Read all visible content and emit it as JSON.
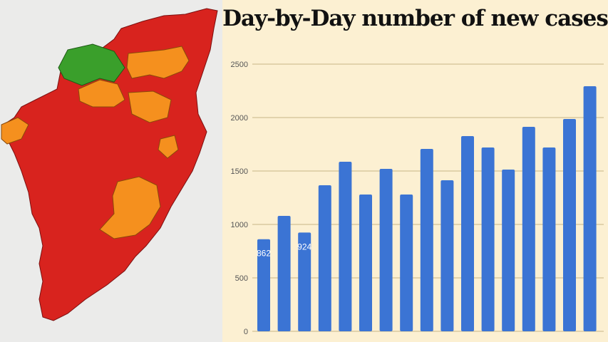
{
  "chart_data": {
    "type": "bar",
    "title": "Day-by-Day number of new cases",
    "xlabel": "",
    "ylabel": "",
    "ylim": [
      0,
      2500
    ],
    "yticks": [
      0,
      500,
      1000,
      1500,
      2000,
      2500
    ],
    "grid": true,
    "values": [
      862,
      1080,
      924,
      1367,
      1587,
      1280,
      1520,
      1280,
      1707,
      1413,
      1827,
      1720,
      1513,
      1913,
      1720,
      1987,
      2293
    ],
    "data_labels_visible": [
      "862",
      "",
      "924",
      "",
      "",
      "",
      "",
      "",
      "",
      "",
      "",
      "",
      "",
      "",
      "",
      "",
      ""
    ],
    "bar_color": "#3b74d4",
    "background_color": "#fcf0d2"
  },
  "map": {
    "zone_colors": {
      "red": "#d8231e",
      "orange": "#f5901e",
      "green": "#3a9f2b"
    }
  }
}
